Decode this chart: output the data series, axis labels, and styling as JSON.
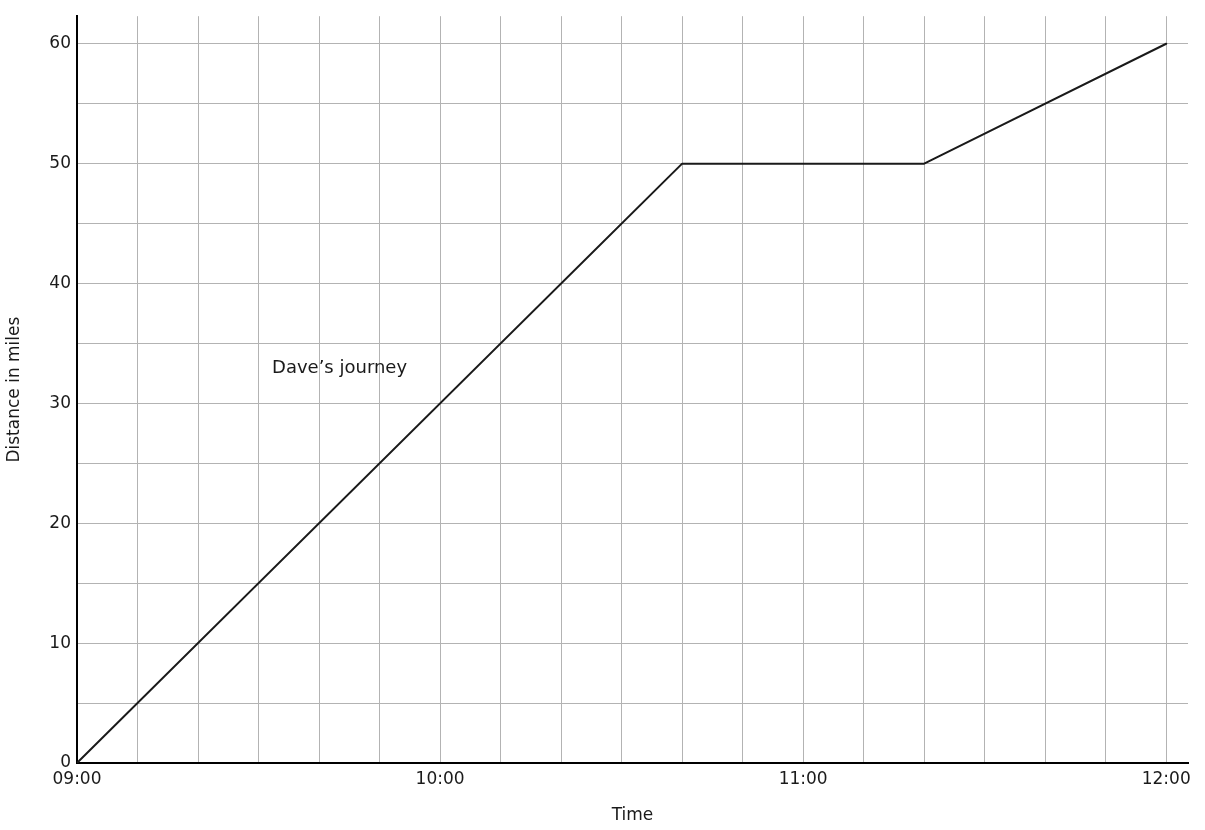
{
  "chart_data": {
    "type": "line",
    "xlabel": "Time",
    "ylabel": "Distance in miles",
    "x": [
      9,
      10.6667,
      11.3333,
      12
    ],
    "series": [
      {
        "name": "Dave’s journey",
        "color": "#1a1a1a",
        "values": [
          0,
          50,
          50,
          60
        ]
      }
    ],
    "xlim": [
      9,
      12.06
    ],
    "ylim": [
      0,
      62.3
    ],
    "xticks": [
      {
        "value": 9,
        "label": "09:00"
      },
      {
        "value": 9.1667,
        "label": null
      },
      {
        "value": 9.3333,
        "label": null
      },
      {
        "value": 9.5,
        "label": null
      },
      {
        "value": 9.6667,
        "label": null
      },
      {
        "value": 9.8333,
        "label": null
      },
      {
        "value": 10,
        "label": "10:00"
      },
      {
        "value": 10.1667,
        "label": null
      },
      {
        "value": 10.3333,
        "label": null
      },
      {
        "value": 10.5,
        "label": null
      },
      {
        "value": 10.6667,
        "label": null
      },
      {
        "value": 10.8333,
        "label": null
      },
      {
        "value": 11,
        "label": "11:00"
      },
      {
        "value": 11.1667,
        "label": null
      },
      {
        "value": 11.3333,
        "label": null
      },
      {
        "value": 11.5,
        "label": null
      },
      {
        "value": 11.6667,
        "label": null
      },
      {
        "value": 11.8333,
        "label": null
      },
      {
        "value": 12,
        "label": "12:00"
      }
    ],
    "yticks": [
      0,
      {
        "value": 5,
        "label": null
      },
      10,
      {
        "value": 15,
        "label": null
      },
      20,
      {
        "value": 25,
        "label": null
      },
      30,
      {
        "value": 35,
        "label": null
      },
      40,
      {
        "value": 45,
        "label": null
      },
      50,
      {
        "value": 55,
        "label": null
      },
      60
    ],
    "grid": true,
    "legend": false,
    "marker": "none",
    "line_style": "solid"
  }
}
